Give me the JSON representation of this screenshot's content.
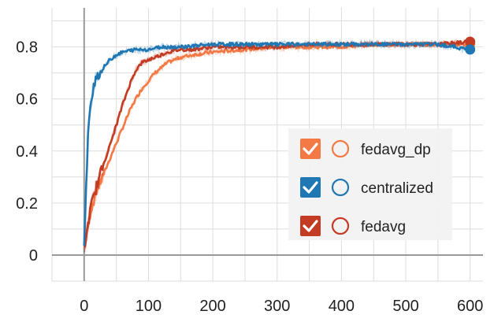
{
  "chart_data": {
    "type": "line",
    "title": "",
    "xlabel": "",
    "ylabel": "",
    "xlim": [
      -50,
      620
    ],
    "ylim": [
      -0.1,
      0.95
    ],
    "grid": true,
    "legend_position": "right",
    "x_ticks": [
      0,
      100,
      200,
      300,
      400,
      500,
      600
    ],
    "x_tick_labels": [
      "0",
      "100",
      "200",
      "300",
      "400",
      "500",
      "600"
    ],
    "y_ticks": [
      0,
      0.2,
      0.4,
      0.6,
      0.8
    ],
    "y_tick_labels": [
      "0",
      "0.2",
      "0.4",
      "0.6",
      "0.8"
    ],
    "series": [
      {
        "name": "fedavg_dp",
        "color": "#f47a45",
        "x": [
          0,
          10,
          20,
          30,
          40,
          50,
          60,
          70,
          80,
          90,
          100,
          110,
          120,
          130,
          140,
          150,
          170,
          200,
          250,
          300,
          350,
          400,
          450,
          500,
          550,
          600
        ],
        "y": [
          0.02,
          0.17,
          0.25,
          0.31,
          0.37,
          0.43,
          0.49,
          0.55,
          0.6,
          0.64,
          0.67,
          0.7,
          0.72,
          0.74,
          0.75,
          0.76,
          0.77,
          0.78,
          0.79,
          0.8,
          0.8,
          0.8,
          0.81,
          0.81,
          0.81,
          0.81
        ]
      },
      {
        "name": "centralized",
        "color": "#1f77b4",
        "x": [
          0,
          3,
          6,
          10,
          15,
          20,
          25,
          30,
          40,
          50,
          60,
          80,
          100,
          120,
          150,
          200,
          250,
          300,
          350,
          400,
          450,
          500,
          550,
          600
        ],
        "y": [
          0.03,
          0.25,
          0.45,
          0.58,
          0.66,
          0.69,
          0.7,
          0.72,
          0.75,
          0.77,
          0.78,
          0.79,
          0.79,
          0.8,
          0.8,
          0.81,
          0.81,
          0.81,
          0.81,
          0.81,
          0.81,
          0.81,
          0.81,
          0.79
        ]
      },
      {
        "name": "fedavg",
        "color": "#c23b22",
        "x": [
          0,
          10,
          20,
          30,
          40,
          50,
          60,
          70,
          80,
          90,
          100,
          110,
          120,
          130,
          150,
          170,
          200,
          250,
          300,
          350,
          400,
          450,
          500,
          550,
          600
        ],
        "y": [
          0.02,
          0.18,
          0.27,
          0.35,
          0.42,
          0.5,
          0.58,
          0.65,
          0.71,
          0.74,
          0.75,
          0.76,
          0.77,
          0.78,
          0.79,
          0.79,
          0.8,
          0.8,
          0.8,
          0.81,
          0.81,
          0.81,
          0.81,
          0.81,
          0.82
        ]
      }
    ]
  }
}
